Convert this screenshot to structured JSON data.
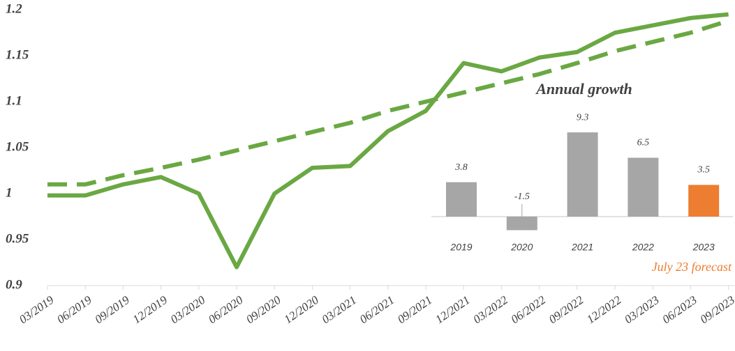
{
  "chart_data": [
    {
      "type": "line",
      "categories": [
        "03/2019",
        "06/2019",
        "09/2019",
        "12/2019",
        "03/2020",
        "06/2020",
        "09/2020",
        "12/2020",
        "03/2021",
        "06/2021",
        "09/2021",
        "12/2021",
        "03/2022",
        "06/2022",
        "09/2022",
        "12/2022",
        "03/2023",
        "06/2023",
        "09/2023"
      ],
      "series": [
        {
          "color": "#6aa843",
          "style": "solid",
          "values": [
            0.998,
            0.998,
            1.01,
            1.018,
            1.0,
            0.92,
            1.0,
            1.028,
            1.03,
            1.068,
            1.09,
            1.142,
            1.133,
            1.148,
            1.154,
            1.175,
            1.183,
            1.191,
            1.195
          ]
        },
        {
          "color": "#6aa843",
          "style": "dashed",
          "values": [
            1.01,
            1.01,
            1.02,
            1.028,
            1.037,
            1.047,
            1.057,
            1.067,
            1.077,
            1.09,
            1.1,
            1.11,
            1.12,
            1.13,
            1.142,
            1.155,
            1.165,
            1.175,
            1.188
          ]
        }
      ],
      "ylim": [
        0.9,
        1.2
      ],
      "yticks": [
        0.9,
        0.95,
        1,
        1.05,
        1.1,
        1.15,
        1.2
      ]
    },
    {
      "type": "bar",
      "title": "Annual growth",
      "categories": [
        "2019",
        "2020",
        "2021",
        "2022",
        "2023"
      ],
      "values": [
        3.8,
        -1.5,
        9.3,
        6.5,
        3.5
      ],
      "colors": [
        "#a6a6a6",
        "#a6a6a6",
        "#a6a6a6",
        "#a6a6a6",
        "#ed7d31"
      ],
      "annotation": "July 23 forecast",
      "annotation_color": "#ed7d31"
    }
  ]
}
